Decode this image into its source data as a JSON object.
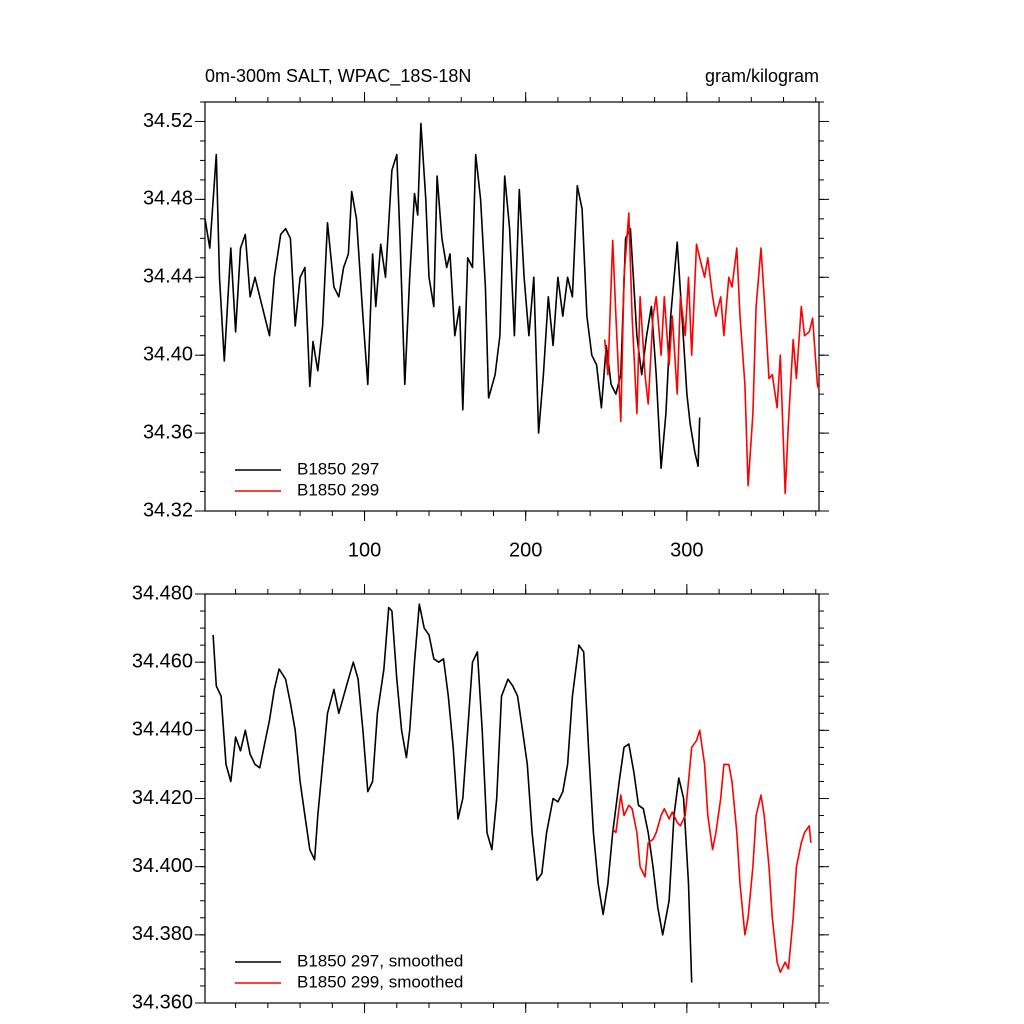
{
  "chart_data": [
    {
      "type": "line",
      "title": "0m-300m SALT, WPAC_18S-18N",
      "units": "gram/kilogram",
      "xlim": [
        1,
        382
      ],
      "xticks": [
        100,
        200,
        300
      ],
      "show_xtick_labels": true,
      "ylim": [
        34.32,
        34.53
      ],
      "yticks": [
        34.32,
        34.36,
        {
          "value": 34.4,
          "label": "34.40"
        },
        34.44,
        34.48,
        34.52
      ],
      "legend": "lower left",
      "series": [
        {
          "name": "B1850 297",
          "color": "#000000",
          "x": [
            1,
            4,
            8,
            10,
            13,
            17,
            20,
            23,
            26,
            29,
            32,
            35,
            38,
            41,
            44,
            48,
            51,
            54,
            57,
            60,
            63,
            66,
            68,
            71,
            74,
            77,
            81,
            84,
            87,
            90,
            92,
            95,
            99,
            102,
            105,
            107,
            110,
            113,
            117,
            120,
            122,
            125,
            128,
            131,
            133,
            135,
            138,
            140,
            143,
            145,
            148,
            151,
            153,
            156,
            159,
            161,
            164,
            167,
            169,
            172,
            175,
            177,
            181,
            184,
            187,
            190,
            193,
            196,
            199,
            202,
            205,
            208,
            211,
            214,
            217,
            220,
            223,
            226,
            229,
            232,
            235,
            238,
            241,
            244,
            247,
            250,
            253,
            256,
            259,
            262,
            265,
            269,
            272,
            275,
            278,
            281,
            284,
            287,
            290,
            294,
            297,
            300,
            302,
            305,
            307,
            308
          ],
          "values": [
            34.47,
            34.455,
            34.503,
            34.44,
            34.397,
            34.455,
            34.412,
            34.455,
            34.462,
            34.43,
            34.44,
            34.43,
            34.42,
            34.41,
            34.44,
            34.462,
            34.465,
            34.46,
            34.415,
            34.44,
            34.445,
            34.384,
            34.407,
            34.392,
            34.415,
            34.468,
            34.435,
            34.43,
            34.445,
            34.452,
            34.484,
            34.47,
            34.42,
            34.385,
            34.452,
            34.425,
            34.457,
            34.44,
            34.495,
            34.503,
            34.46,
            34.385,
            34.44,
            34.483,
            34.472,
            34.519,
            34.48,
            34.44,
            34.425,
            34.492,
            34.46,
            34.445,
            34.452,
            34.41,
            34.425,
            34.372,
            34.45,
            34.445,
            34.503,
            34.48,
            34.435,
            34.378,
            34.39,
            34.41,
            34.492,
            34.465,
            34.41,
            34.485,
            34.44,
            34.41,
            34.44,
            34.36,
            34.39,
            34.43,
            34.405,
            34.44,
            34.42,
            34.44,
            34.43,
            34.487,
            34.475,
            34.42,
            34.4,
            34.395,
            34.373,
            34.405,
            34.385,
            34.38,
            34.39,
            34.46,
            34.465,
            34.41,
            34.39,
            34.41,
            34.425,
            34.39,
            34.342,
            34.37,
            34.42,
            34.458,
            34.42,
            34.38,
            34.365,
            34.35,
            34.343,
            34.368
          ]
        },
        {
          "name": "B1850 299",
          "color": "#ff0000",
          "x": [
            249,
            251,
            254,
            256,
            259,
            261,
            264,
            266,
            269,
            271,
            274,
            276,
            279,
            281,
            284,
            286,
            289,
            291,
            294,
            296,
            299,
            301,
            303,
            306,
            308,
            311,
            313,
            316,
            318,
            321,
            323,
            326,
            328,
            331,
            333,
            336,
            338,
            341,
            343,
            346,
            348,
            351,
            353,
            356,
            358,
            361,
            363,
            366,
            368,
            371,
            373,
            376,
            378,
            381,
            382
          ],
          "values": [
            34.408,
            34.39,
            34.459,
            34.42,
            34.366,
            34.44,
            34.473,
            34.42,
            34.37,
            34.43,
            34.39,
            34.375,
            34.42,
            34.43,
            34.4,
            34.43,
            34.395,
            34.42,
            34.38,
            34.43,
            34.41,
            34.44,
            34.4,
            34.457,
            34.45,
            34.44,
            34.45,
            34.43,
            34.42,
            34.43,
            34.41,
            34.44,
            34.435,
            34.455,
            34.42,
            34.385,
            34.333,
            34.37,
            34.425,
            34.455,
            34.43,
            34.388,
            34.39,
            34.373,
            34.4,
            34.329,
            34.365,
            34.408,
            34.388,
            34.425,
            34.41,
            34.412,
            34.419,
            34.385,
            34.382
          ]
        }
      ]
    },
    {
      "type": "line",
      "xlim": [
        1,
        382
      ],
      "xticks": [
        100,
        200,
        300
      ],
      "show_xtick_labels": false,
      "ylim": [
        34.36,
        34.48
      ],
      "yticks": [
        {
          "value": 34.36,
          "label": "34.360"
        },
        {
          "value": 34.38,
          "label": "34.380"
        },
        {
          "value": 34.4,
          "label": "34.400"
        },
        {
          "value": 34.42,
          "label": "34.420"
        },
        {
          "value": 34.44,
          "label": "34.440"
        },
        {
          "value": 34.46,
          "label": "34.460"
        },
        {
          "value": 34.48,
          "label": "34.480"
        }
      ],
      "legend": "lower left",
      "series": [
        {
          "name": "B1850 297, smoothed",
          "color": "#000000",
          "x": [
            6,
            8,
            11,
            14,
            17,
            20,
            23,
            26,
            29,
            32,
            35,
            38,
            41,
            44,
            47,
            51,
            54,
            57,
            60,
            63,
            66,
            69,
            71,
            74,
            77,
            81,
            84,
            87,
            90,
            93,
            96,
            99,
            102,
            105,
            108,
            112,
            115,
            117,
            120,
            123,
            126,
            128,
            131,
            134,
            137,
            140,
            143,
            146,
            149,
            152,
            155,
            158,
            161,
            164,
            167,
            170,
            173,
            176,
            179,
            182,
            185,
            189,
            192,
            195,
            198,
            201,
            204,
            207,
            210,
            213,
            217,
            220,
            223,
            226,
            229,
            233,
            236,
            239,
            242,
            245,
            248,
            251,
            254,
            258,
            261,
            264,
            267,
            270,
            273,
            276,
            279,
            282,
            285,
            289,
            292,
            295,
            298,
            301,
            303
          ],
          "values": [
            34.468,
            34.453,
            34.45,
            34.43,
            34.425,
            34.438,
            34.434,
            34.44,
            34.433,
            34.43,
            34.429,
            34.436,
            34.443,
            34.452,
            34.458,
            34.455,
            34.448,
            34.44,
            34.425,
            34.415,
            34.405,
            34.402,
            34.415,
            34.43,
            34.445,
            34.452,
            34.445,
            34.45,
            34.455,
            34.46,
            34.455,
            34.44,
            34.422,
            34.425,
            34.445,
            34.458,
            34.476,
            34.475,
            34.455,
            34.44,
            34.432,
            34.44,
            34.46,
            34.477,
            34.47,
            34.468,
            34.461,
            34.46,
            34.461,
            34.45,
            34.435,
            34.414,
            34.42,
            34.44,
            34.46,
            34.463,
            34.44,
            34.41,
            34.405,
            34.42,
            34.45,
            34.455,
            34.453,
            34.45,
            34.44,
            34.43,
            34.41,
            34.396,
            34.398,
            34.41,
            34.42,
            34.419,
            34.422,
            34.43,
            34.45,
            34.465,
            34.463,
            34.435,
            34.41,
            34.395,
            34.386,
            34.395,
            34.41,
            34.425,
            34.435,
            34.436,
            34.428,
            34.418,
            34.417,
            34.41,
            34.4,
            34.388,
            34.38,
            34.39,
            34.415,
            34.426,
            34.42,
            34.395,
            34.366
          ]
        },
        {
          "name": "B1850 299, smoothed",
          "color": "#ff0000",
          "x": [
            254,
            256,
            259,
            261,
            264,
            266,
            269,
            271,
            274,
            276,
            279,
            281,
            284,
            286,
            289,
            291,
            294,
            296,
            299,
            301,
            303,
            306,
            308,
            311,
            313,
            316,
            318,
            321,
            323,
            326,
            328,
            331,
            333,
            336,
            338,
            341,
            343,
            346,
            348,
            351,
            353,
            356,
            358,
            361,
            363,
            366,
            368,
            371,
            373,
            376,
            377
          ],
          "values": [
            34.411,
            34.41,
            34.421,
            34.415,
            34.418,
            34.417,
            34.41,
            34.4,
            34.397,
            34.407,
            34.408,
            34.41,
            34.415,
            34.417,
            34.414,
            34.416,
            34.413,
            34.412,
            34.415,
            34.425,
            34.435,
            34.437,
            34.44,
            34.43,
            34.415,
            34.405,
            34.41,
            34.42,
            34.43,
            34.43,
            34.425,
            34.41,
            34.395,
            34.38,
            34.385,
            34.4,
            34.415,
            34.421,
            34.415,
            34.4,
            34.385,
            34.372,
            34.369,
            34.372,
            34.37,
            34.385,
            34.4,
            34.407,
            34.41,
            34.412,
            34.407
          ]
        }
      ]
    }
  ]
}
